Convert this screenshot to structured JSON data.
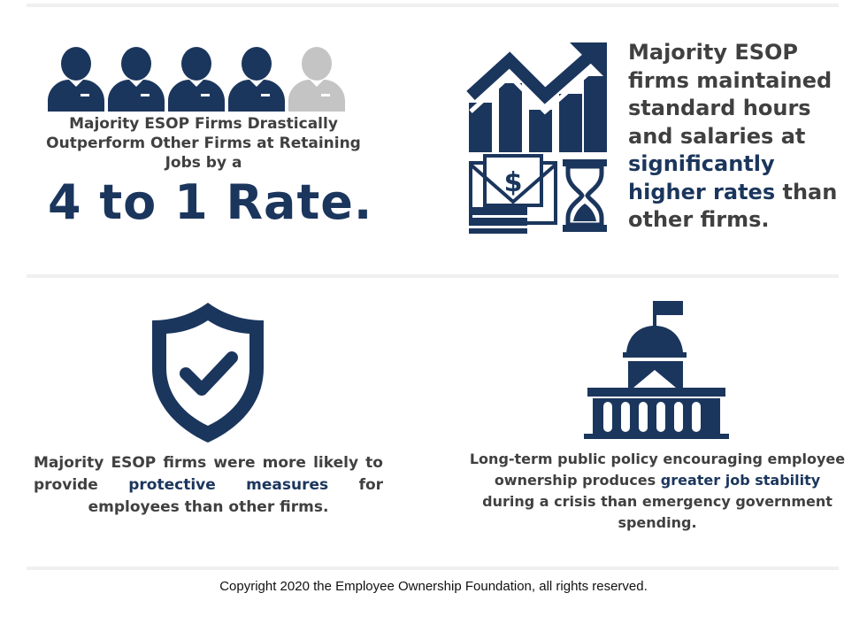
{
  "jobs_panel": {
    "people_icons": [
      "person-icon",
      "person-icon",
      "person-icon",
      "person-icon",
      "person-icon-gray"
    ],
    "headline": "Majority ESOP Firms Drastically Outperform Other Firms at Retaining Jobs by a",
    "rate": "4 to 1 Rate."
  },
  "wages_panel": {
    "icons": [
      "growth-bar-chart-icon",
      "money-envelope-icon",
      "hourglass-icon"
    ],
    "text_before": "Majority ESOP firms maintained standard hours and salaries at",
    "highlight": "significantly higher rates",
    "text_after": "than other firms."
  },
  "protection_panel": {
    "icon": "shield-check-icon",
    "text_before": "Majority ESOP firms were more likely to provide",
    "highlight": "protective measures",
    "text_after": "for employees than other firms."
  },
  "policy_panel": {
    "icon": "capitol-building-icon",
    "text_before": "Long-term public policy encouraging employee ownership produces",
    "highlight": "greater job stability",
    "text_after": "during a crisis than emergency government spending."
  },
  "footer": {
    "copyright": "Copyright 2020 the Employee Ownership Foundation, all rights reserved."
  },
  "colors": {
    "navy": "#1b365d",
    "gray_person": "#c4c4c4",
    "body_text": "#404040"
  }
}
